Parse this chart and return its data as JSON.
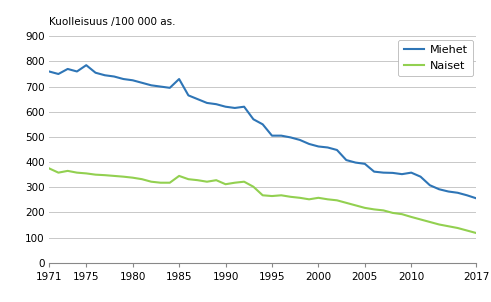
{
  "years": [
    1971,
    1972,
    1973,
    1974,
    1975,
    1976,
    1977,
    1978,
    1979,
    1980,
    1981,
    1982,
    1983,
    1984,
    1985,
    1986,
    1987,
    1988,
    1989,
    1990,
    1991,
    1992,
    1993,
    1994,
    1995,
    1996,
    1997,
    1998,
    1999,
    2000,
    2001,
    2002,
    2003,
    2004,
    2005,
    2006,
    2007,
    2008,
    2009,
    2010,
    2011,
    2012,
    2013,
    2014,
    2015,
    2016,
    2017
  ],
  "miehet": [
    760,
    750,
    770,
    760,
    785,
    755,
    745,
    740,
    730,
    725,
    715,
    705,
    700,
    695,
    730,
    665,
    650,
    635,
    630,
    620,
    615,
    620,
    570,
    550,
    505,
    505,
    498,
    488,
    472,
    462,
    458,
    448,
    408,
    398,
    393,
    362,
    358,
    357,
    352,
    358,
    342,
    308,
    292,
    283,
    278,
    268,
    256
  ],
  "naiset": [
    375,
    358,
    365,
    358,
    355,
    350,
    348,
    345,
    342,
    338,
    332,
    322,
    318,
    318,
    345,
    332,
    328,
    322,
    328,
    312,
    318,
    322,
    302,
    268,
    265,
    268,
    262,
    258,
    252,
    258,
    252,
    248,
    238,
    228,
    218,
    212,
    208,
    198,
    193,
    182,
    172,
    162,
    152,
    145,
    138,
    128,
    118
  ],
  "miehet_color": "#2E75B6",
  "naiset_color": "#92D050",
  "ylabel": "Kuolleisuus /100 000 as.",
  "ylim": [
    0,
    900
  ],
  "yticks": [
    0,
    100,
    200,
    300,
    400,
    500,
    600,
    700,
    800,
    900
  ],
  "xticks": [
    1971,
    1975,
    1980,
    1985,
    1990,
    1995,
    2000,
    2005,
    2010,
    2017
  ],
  "legend_miehet": "Miehet",
  "legend_naiset": "Naiset",
  "background_color": "#ffffff",
  "grid_color": "#c8c8c8",
  "spine_color": "#888888",
  "linewidth": 1.5,
  "fontsize": 7.5,
  "legend_fontsize": 8.0
}
